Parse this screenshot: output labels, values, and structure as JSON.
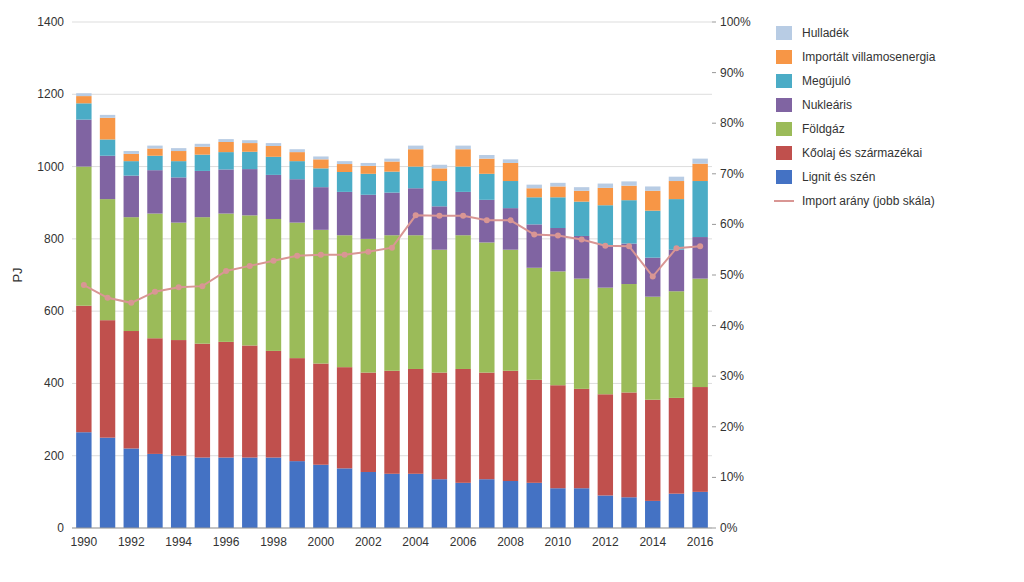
{
  "chart_data": {
    "type": "bar",
    "stacked": true,
    "ylabel": "PJ",
    "categories": [
      1990,
      null,
      1992,
      null,
      1994,
      null,
      1996,
      null,
      1998,
      null,
      2000,
      null,
      2002,
      null,
      2004,
      null,
      2006,
      null,
      2008,
      null,
      2010,
      null,
      2012,
      null,
      2014,
      null,
      2016
    ],
    "series": [
      {
        "name": "Lignit és szén",
        "color": "#4472C4",
        "values": [
          265,
          250,
          220,
          205,
          200,
          195,
          195,
          195,
          195,
          185,
          175,
          165,
          155,
          150,
          150,
          135,
          125,
          135,
          130,
          125,
          110,
          110,
          90,
          85,
          75,
          95,
          100
        ]
      },
      {
        "name": "Kőolaj és származékai",
        "color": "#C0504D",
        "values": [
          350,
          325,
          325,
          320,
          320,
          315,
          320,
          310,
          295,
          285,
          280,
          280,
          275,
          285,
          290,
          295,
          315,
          295,
          305,
          285,
          285,
          275,
          280,
          290,
          280,
          265,
          290
        ]
      },
      {
        "name": "Földgáz",
        "color": "#9BBB59",
        "values": [
          385,
          335,
          315,
          345,
          325,
          350,
          355,
          360,
          365,
          375,
          370,
          365,
          370,
          375,
          370,
          340,
          370,
          360,
          335,
          310,
          315,
          305,
          295,
          300,
          285,
          295,
          300
        ]
      },
      {
        "name": "Nukleáris",
        "color": "#8064A2",
        "values": [
          130,
          120,
          115,
          120,
          125,
          128,
          122,
          128,
          122,
          120,
          118,
          120,
          122,
          118,
          130,
          120,
          120,
          118,
          115,
          120,
          120,
          118,
          118,
          112,
          108,
          115,
          115
        ]
      },
      {
        "name": "Megújuló",
        "color": "#4BACC6",
        "values": [
          45,
          45,
          40,
          40,
          45,
          45,
          48,
          48,
          50,
          50,
          52,
          55,
          58,
          58,
          60,
          70,
          70,
          72,
          75,
          75,
          85,
          95,
          110,
          120,
          130,
          140,
          155
        ]
      },
      {
        "name": "Importált villamosenergia",
        "color": "#F79646",
        "values": [
          20,
          60,
          20,
          20,
          28,
          22,
          28,
          24,
          30,
          25,
          25,
          22,
          22,
          28,
          48,
          35,
          48,
          42,
          50,
          25,
          30,
          30,
          48,
          40,
          55,
          50,
          48
        ]
      },
      {
        "name": "Hulladék",
        "color": "#B8CCE4",
        "values": [
          8,
          8,
          8,
          8,
          8,
          8,
          8,
          8,
          8,
          8,
          8,
          8,
          8,
          8,
          10,
          10,
          10,
          10,
          10,
          10,
          10,
          10,
          12,
          12,
          12,
          12,
          14
        ]
      },
      {
        "name": "Import arány (jobb skála)",
        "type": "line",
        "axis": "y2",
        "marker": "circle",
        "line_style": "solid",
        "color": "#D99694",
        "values": [
          0.48,
          0.455,
          0.445,
          0.467,
          0.476,
          0.478,
          0.508,
          0.518,
          0.528,
          0.538,
          0.54,
          0.54,
          0.546,
          0.554,
          0.618,
          0.617,
          0.617,
          0.608,
          0.608,
          0.58,
          0.578,
          0.57,
          0.558,
          0.557,
          0.497,
          0.553,
          0.557
        ]
      }
    ],
    "ylim": [
      0,
      1400
    ],
    "yticks": [
      0,
      200,
      400,
      600,
      800,
      1000,
      1200,
      1400
    ],
    "y2lim": [
      0,
      1.0
    ],
    "y2ticks": [
      {
        "value": 0,
        "label": "0%"
      },
      {
        "value": 0.1,
        "label": "10%"
      },
      {
        "value": 0.2,
        "label": "20%"
      },
      {
        "value": 0.3,
        "label": "30%"
      },
      {
        "value": 0.4,
        "label": "40%"
      },
      {
        "value": 0.5,
        "label": "50%"
      },
      {
        "value": 0.6,
        "label": "60%"
      },
      {
        "value": 0.7,
        "label": "70%"
      },
      {
        "value": 0.8,
        "label": "80%"
      },
      {
        "value": 0.9,
        "label": "90%"
      },
      {
        "value": 1.0,
        "label": "100%"
      }
    ],
    "grid": true,
    "legend": "right"
  }
}
